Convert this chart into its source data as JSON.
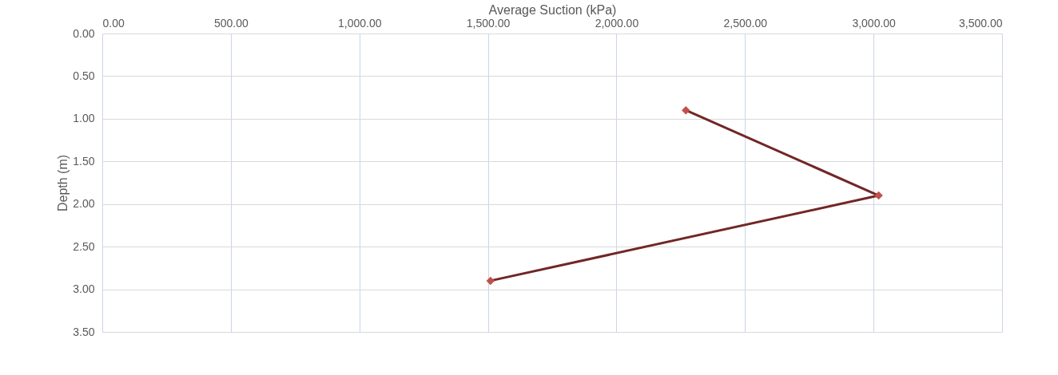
{
  "chart_data": {
    "type": "line",
    "xlabel": "Average Suction (kPa)",
    "ylabel": "Depth (m)",
    "series": [
      {
        "color": "#722626",
        "x": [
          2270,
          3020,
          1510
        ],
        "values": [
          0.9,
          1.9,
          2.9
        ]
      }
    ],
    "xlim": [
      0,
      3500
    ],
    "ylim": [
      3.5,
      0
    ],
    "xticks": [
      {
        "value": 0,
        "label": "0.00"
      },
      {
        "value": 500,
        "label": "500.00"
      },
      {
        "value": 1000,
        "label": "1,000.00"
      },
      {
        "value": 1500,
        "label": "1,500.00"
      },
      {
        "value": 2000,
        "label": "2,000.00"
      },
      {
        "value": 2500,
        "label": "2,500.00"
      },
      {
        "value": 3000,
        "label": "3,000.00"
      },
      {
        "value": 3500,
        "label": "3,500.00"
      }
    ],
    "yticks": [
      {
        "value": 0,
        "label": "0.00"
      },
      {
        "value": 0.5,
        "label": "0.50"
      },
      {
        "value": 1,
        "label": "1.00"
      },
      {
        "value": 1.5,
        "label": "1.50"
      },
      {
        "value": 2,
        "label": "2.00"
      },
      {
        "value": 2.5,
        "label": "2.50"
      },
      {
        "value": 3,
        "label": "3.00"
      },
      {
        "value": 3.5,
        "label": "3.50"
      }
    ],
    "grid": true,
    "marker": "diamond"
  }
}
